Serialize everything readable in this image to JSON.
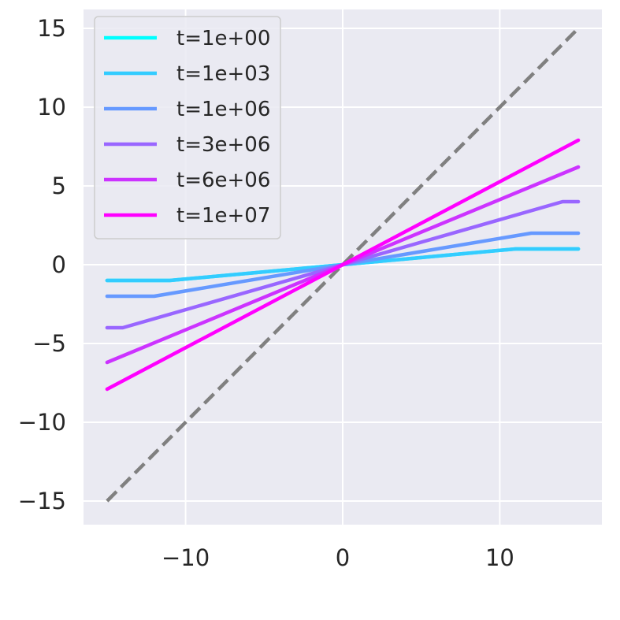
{
  "chart_data": {
    "type": "line",
    "title": "",
    "xlabel": "",
    "ylabel": "",
    "xlim": [
      -16.5,
      16.5
    ],
    "ylim": [
      -16.5,
      16.2
    ],
    "xticks": [
      -10,
      0,
      10
    ],
    "xtick_labels": [
      "−10",
      "0",
      "10"
    ],
    "yticks": [
      -15,
      -10,
      -5,
      0,
      5,
      10,
      15
    ],
    "ytick_labels": [
      "−15",
      "−10",
      "−5",
      "0",
      "5",
      "10",
      "15"
    ],
    "grid": true,
    "background": "#eaeaf2",
    "legend_position": "upper-left",
    "series": [
      {
        "name": "t=1e+00",
        "color": "#00ffff",
        "x": [
          -15,
          -11,
          11,
          15
        ],
        "y": [
          -1,
          -1,
          1,
          1
        ]
      },
      {
        "name": "t=1e+03",
        "color": "#33ccff",
        "x": [
          -15,
          -11,
          11,
          15
        ],
        "y": [
          -1,
          -1,
          1,
          1
        ]
      },
      {
        "name": "t=1e+06",
        "color": "#6699ff",
        "x": [
          -15,
          -12,
          12,
          15
        ],
        "y": [
          -2,
          -2,
          2,
          2
        ]
      },
      {
        "name": "t=3e+06",
        "color": "#9966ff",
        "x": [
          -15,
          -14,
          14,
          15
        ],
        "y": [
          -4,
          -4,
          4,
          4
        ]
      },
      {
        "name": "t=6e+06",
        "color": "#cc33ff",
        "x": [
          -15,
          15
        ],
        "y": [
          -6.2,
          6.2
        ]
      },
      {
        "name": "t=1e+07",
        "color": "#ff00ff",
        "x": [
          -15,
          15
        ],
        "y": [
          -7.9,
          7.9
        ]
      }
    ],
    "reference_line": {
      "x": [
        -15,
        15
      ],
      "y": [
        -15,
        15
      ],
      "style": "dashed",
      "color": "#808080"
    }
  }
}
